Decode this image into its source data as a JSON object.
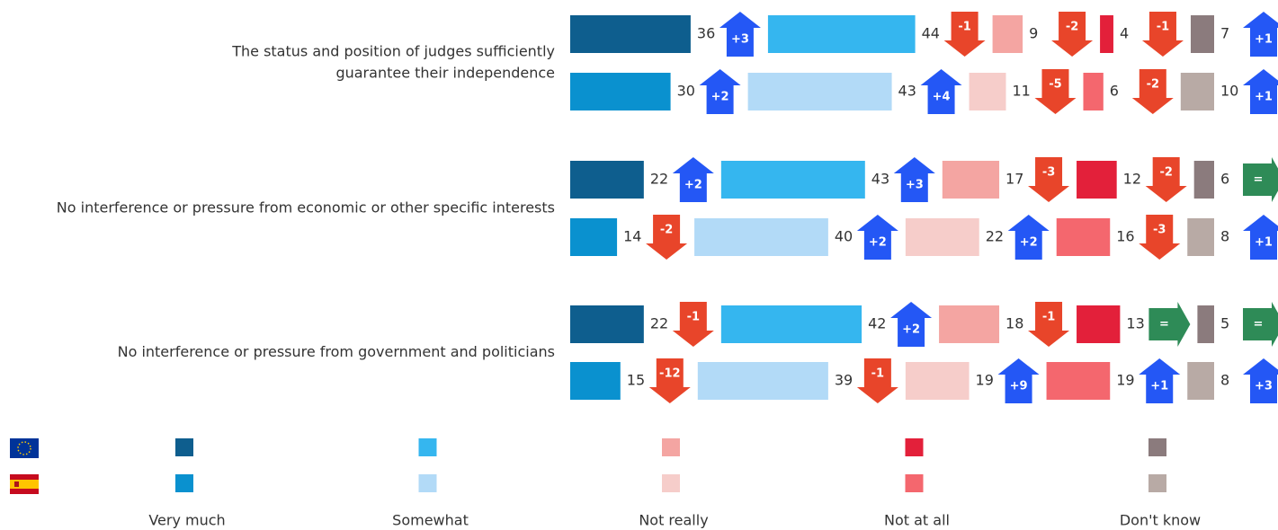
{
  "chart_data": {
    "type": "diverging_segments",
    "categories": [
      [
        "The status and position of judges sufficiently",
        "guarantee their independence"
      ],
      [
        "No interference or pressure from economic or other specific interests"
      ],
      [
        "No interference or pressure from government and politicians"
      ]
    ],
    "series": [
      {
        "name": "Very much",
        "colors": [
          "#0e5e8e",
          "#0a91cf"
        ]
      },
      {
        "name": "Somewhat",
        "colors": [
          "#35b6ef",
          "#b2daf7"
        ]
      },
      {
        "name": "Not really",
        "colors": [
          "#f4a5a2",
          "#f6cdca"
        ]
      },
      {
        "name": "Not at all",
        "colors": [
          "#e3203a",
          "#f4676e"
        ]
      },
      {
        "name": "Don't know",
        "colors": [
          "#8b7b7d",
          "#b8aaa5"
        ]
      }
    ],
    "values": [
      [
        [
          36,
          44,
          9,
          4,
          7
        ],
        [
          30,
          43,
          11,
          6,
          10
        ]
      ],
      [
        [
          22,
          43,
          17,
          12,
          6
        ],
        [
          14,
          40,
          22,
          16,
          8
        ]
      ],
      [
        [
          22,
          42,
          18,
          13,
          5
        ],
        [
          15,
          39,
          19,
          19,
          8
        ]
      ]
    ],
    "changes": [
      [
        [
          3,
          -1,
          -2,
          -1,
          1
        ],
        [
          2,
          4,
          -5,
          -2,
          1
        ]
      ],
      [
        [
          2,
          3,
          -3,
          -2,
          0
        ],
        [
          -2,
          2,
          2,
          -3,
          1
        ]
      ],
      [
        [
          -1,
          2,
          -1,
          0,
          0
        ],
        [
          -12,
          -1,
          9,
          1,
          3
        ]
      ]
    ],
    "change_labels": [
      [
        [
          "+3",
          "-1",
          "-2",
          "-1",
          "+1"
        ],
        [
          "+2",
          "+4",
          "-5",
          "-2",
          "+1"
        ]
      ],
      [
        [
          "+2",
          "+3",
          "-3",
          "-2",
          "="
        ],
        [
          "-2",
          "+2",
          "+2",
          "-3",
          "+1"
        ]
      ],
      [
        [
          "-1",
          "+2",
          "-1",
          "=",
          "="
        ],
        [
          "-12",
          "-1",
          "+9",
          "+1",
          "+3"
        ]
      ]
    ],
    "change_colors": {
      "up": "#2457f5",
      "down": "#e8452a",
      "same": "#2e8b57"
    }
  }
}
